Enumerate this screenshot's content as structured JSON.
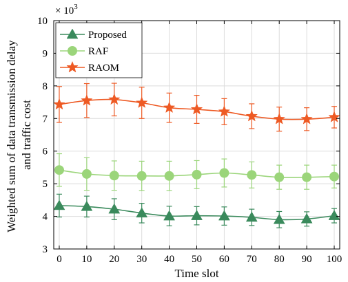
{
  "chart_data": {
    "type": "line",
    "title": "",
    "xlabel": "Time slot",
    "ylabel": "Weighted sum of data transmission delay and traffic cost",
    "ylabel_lines": [
      "Weighted sum of data transmission delay",
      "and traffic cost"
    ],
    "y_multiplier": "× 10",
    "y_multiplier_exp": "3",
    "x": [
      0,
      10,
      20,
      30,
      40,
      50,
      60,
      70,
      80,
      90,
      100
    ],
    "xlim": [
      -2,
      102
    ],
    "ylim": [
      3,
      10
    ],
    "xticks": [
      "0",
      "10",
      "20",
      "30",
      "40",
      "50",
      "60",
      "70",
      "80",
      "90",
      "100"
    ],
    "yticks": [
      "3",
      "4",
      "5",
      "6",
      "7",
      "8",
      "9",
      "10"
    ],
    "grid": true,
    "legend_position": "top-left",
    "series": [
      {
        "name": "Proposed",
        "color": "#3a8a5c",
        "marker": "triangle",
        "values": [
          4.33,
          4.3,
          4.22,
          4.1,
          4.01,
          4.02,
          4.01,
          3.97,
          3.9,
          3.92,
          4.02
        ],
        "errors": [
          0.35,
          0.32,
          0.32,
          0.3,
          0.3,
          0.28,
          0.28,
          0.25,
          0.25,
          0.22,
          0.22
        ]
      },
      {
        "name": "RAF",
        "color": "#9bd57a",
        "marker": "circle",
        "values": [
          5.42,
          5.3,
          5.25,
          5.24,
          5.24,
          5.28,
          5.33,
          5.27,
          5.2,
          5.2,
          5.22
        ],
        "errors": [
          0.5,
          0.5,
          0.45,
          0.45,
          0.45,
          0.43,
          0.43,
          0.4,
          0.37,
          0.37,
          0.35
        ]
      },
      {
        "name": "RAOM",
        "color": "#ee5a24",
        "marker": "star",
        "values": [
          7.43,
          7.55,
          7.58,
          7.48,
          7.33,
          7.28,
          7.21,
          7.07,
          6.98,
          6.98,
          7.04
        ],
        "errors": [
          0.55,
          0.52,
          0.5,
          0.48,
          0.45,
          0.43,
          0.4,
          0.38,
          0.37,
          0.35,
          0.33
        ]
      }
    ]
  }
}
